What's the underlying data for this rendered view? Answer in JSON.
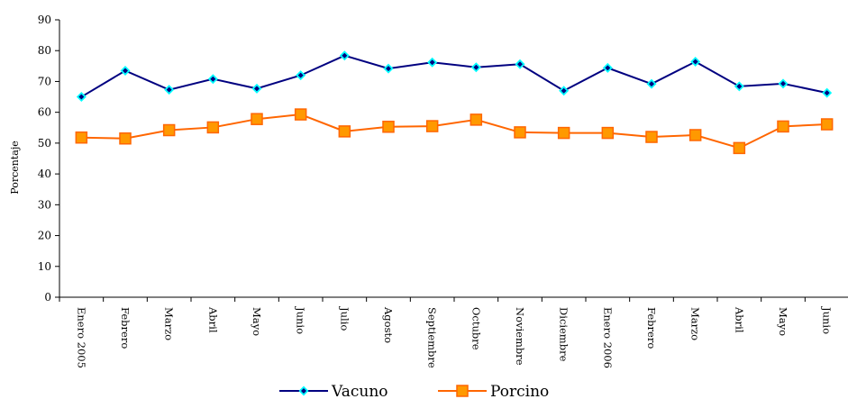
{
  "chart_data": {
    "type": "line",
    "title": "",
    "xlabel": "",
    "ylabel": "Porcentaje",
    "ylim": [
      0,
      90
    ],
    "yticks": [
      0,
      10,
      20,
      30,
      40,
      50,
      60,
      70,
      80,
      90
    ],
    "grid": false,
    "legend_position": "bottom",
    "categories": [
      "Enero 2005",
      "Febrero",
      "Marzo",
      "Abril",
      "Mayo",
      "Junio",
      "Julio",
      "Agosto",
      "Septiembre",
      "Octubre",
      "Noviembre",
      "Diciembre",
      "Enero 2006",
      "Febrero",
      "Marzo",
      "Abril",
      "Mayo",
      "Junio"
    ],
    "series": [
      {
        "name": "Vacuno",
        "color": "#000080",
        "marker": "diamond",
        "marker_fill": "#00FFFF",
        "values": [
          65,
          73.5,
          67.3,
          70.8,
          67.7,
          72,
          78.4,
          74.2,
          76.2,
          74.6,
          75.6,
          67,
          74.4,
          69.2,
          76.4,
          68.4,
          69.3,
          66.3
        ]
      },
      {
        "name": "Porcino",
        "color": "#FF6600",
        "marker": "square",
        "marker_fill": "#FF9900",
        "values": [
          51.8,
          51.5,
          54.2,
          55.1,
          57.8,
          59.3,
          53.8,
          55.3,
          55.5,
          57.6,
          53.5,
          53.3,
          53.3,
          52,
          52.6,
          48.4,
          55.4,
          56.1
        ]
      }
    ]
  }
}
